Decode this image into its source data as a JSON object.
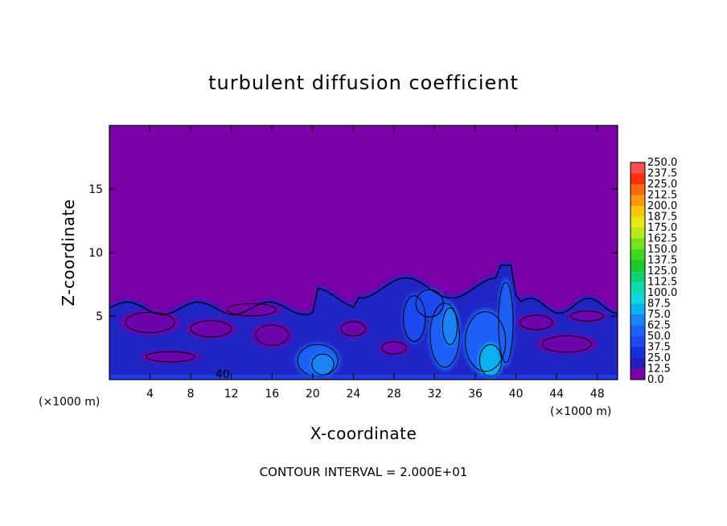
{
  "chart_data": {
    "type": "heatmap",
    "title": "turbulent diffusion coefficient",
    "xlabel": "X-coordinate",
    "ylabel": "Z-coordinate",
    "x_unit_left": "(×1000 m)",
    "x_unit_right": "(×1000 m)",
    "xlim": [
      0,
      50
    ],
    "ylim": [
      0,
      20
    ],
    "x_ticks": [
      "4",
      "8",
      "12",
      "16",
      "20",
      "24",
      "28",
      "32",
      "36",
      "40",
      "44",
      "48"
    ],
    "x_tick_values": [
      4,
      8,
      12,
      16,
      20,
      24,
      28,
      32,
      36,
      40,
      44,
      48
    ],
    "y_ticks": [
      "5",
      "10",
      "15"
    ],
    "y_tick_values": [
      5,
      10,
      15
    ],
    "background_color": "#7a00a8",
    "colorbar": {
      "levels": [
        "0.0",
        "12.5",
        "25.0",
        "37.5",
        "50.0",
        "62.5",
        "75.0",
        "87.5",
        "100.0",
        "112.5",
        "125.0",
        "137.5",
        "150.0",
        "162.5",
        "175.0",
        "187.5",
        "200.0",
        "212.5",
        "225.0",
        "237.5",
        "250.0"
      ],
      "colors": [
        "#7a00a8",
        "#2a1cb8",
        "#1630d8",
        "#1e48f0",
        "#1e60f8",
        "#1a84f8",
        "#10b0f0",
        "#10d8d8",
        "#10d8a8",
        "#10d070",
        "#20c830",
        "#40d820",
        "#78e020",
        "#b8e820",
        "#e8e818",
        "#f8c810",
        "#f89810",
        "#f86810",
        "#f83010",
        "#f85050"
      ]
    },
    "turbulent_layer_top_approx": 7.5,
    "annotations": [
      "40"
    ]
  },
  "footer": {
    "contour_interval": "CONTOUR INTERVAL = 2.000E+01"
  }
}
